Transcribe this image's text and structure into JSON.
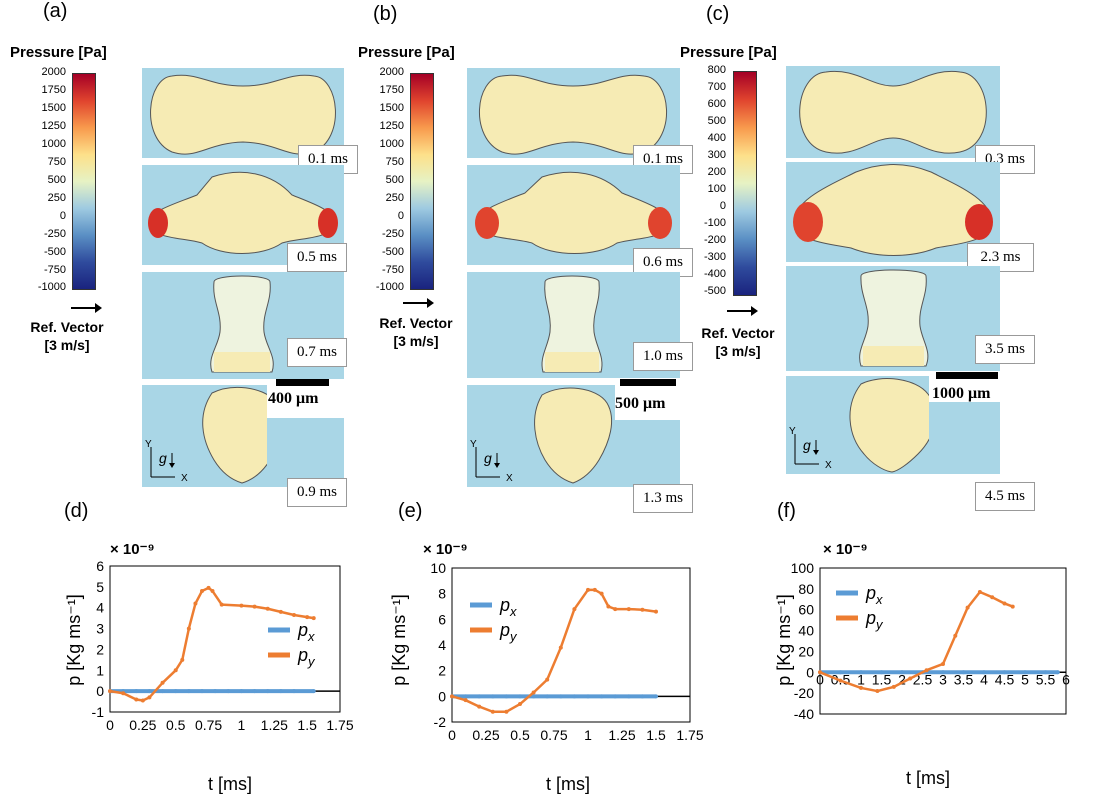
{
  "panels": [
    {
      "label": "(a)",
      "colorbar_title": "Pressure [Pa]",
      "ticks": [
        "2000",
        "1750",
        "1500",
        "1250",
        "1000",
        "750",
        "500",
        "250",
        "0",
        "-250",
        "-500",
        "-750",
        "-1000"
      ],
      "ref_vector": "Ref. Vector",
      "ref_speed": "[3 m/s]",
      "times": [
        "0.1 ms",
        "0.5 ms",
        "0.7 ms",
        "0.9 ms"
      ],
      "scale": "400 μm"
    },
    {
      "label": "(b)",
      "colorbar_title": "Pressure [Pa]",
      "ticks": [
        "2000",
        "1750",
        "1500",
        "1250",
        "1000",
        "750",
        "500",
        "250",
        "0",
        "-250",
        "-500",
        "-750",
        "-1000"
      ],
      "ref_vector": "Ref. Vector",
      "ref_speed": "[3 m/s]",
      "times": [
        "0.1 ms",
        "0.6 ms",
        "1.0 ms",
        "1.3 ms"
      ],
      "scale": "500 μm"
    },
    {
      "label": "(c)",
      "colorbar_title": "Pressure [Pa]",
      "ticks": [
        "800",
        "700",
        "600",
        "500",
        "400",
        "300",
        "200",
        "100",
        "0",
        "-100",
        "-200",
        "-300",
        "-400",
        "-500"
      ],
      "ref_vector": "Ref. Vector",
      "ref_speed": "[3 m/s]",
      "times": [
        "0.3 ms",
        "2.3 ms",
        "3.5 ms",
        "4.5 ms"
      ],
      "scale": "1000 μm"
    }
  ],
  "axes_icon": {
    "y": "Y",
    "x": "X",
    "g": "g"
  },
  "colors": {
    "px": "#5b9bd5",
    "py": "#ed7d31",
    "fluid": "#a9d6e6"
  },
  "chart_data": [
    {
      "label": "(d)",
      "type": "line",
      "multiplier": "× 10⁻⁹",
      "ylabel": "p [Kg ms⁻¹]",
      "xlabel": "t [ms]",
      "xlim": [
        0,
        1.75
      ],
      "ylim": [
        -1,
        6
      ],
      "xticks": [
        "0",
        "0.25",
        "0.5",
        "0.75",
        "1",
        "1.25",
        "1.5",
        "1.75"
      ],
      "xtickvals": [
        0,
        0.25,
        0.5,
        0.75,
        1,
        1.25,
        1.5,
        1.75
      ],
      "yticks": [
        "-1",
        "0",
        "1",
        "2",
        "3",
        "4",
        "5",
        "6"
      ],
      "ytickvals": [
        -1,
        0,
        1,
        2,
        3,
        4,
        5,
        6
      ],
      "legend": [
        "p_x",
        "p_y"
      ],
      "series": [
        {
          "name": "p_x",
          "x": [
            0,
            0.1,
            0.2,
            0.3,
            0.4,
            0.5,
            0.6,
            0.7,
            0.8,
            0.9,
            1.0,
            1.1,
            1.2,
            1.3,
            1.4,
            1.55
          ],
          "y": [
            0,
            0,
            0,
            0,
            0,
            0,
            0,
            0,
            0,
            0,
            0,
            0,
            0,
            0,
            0,
            0
          ]
        },
        {
          "name": "p_y",
          "x": [
            0,
            0.1,
            0.2,
            0.25,
            0.3,
            0.4,
            0.5,
            0.55,
            0.6,
            0.65,
            0.7,
            0.75,
            0.78,
            0.85,
            1.0,
            1.1,
            1.2,
            1.3,
            1.4,
            1.5,
            1.55
          ],
          "y": [
            0,
            -0.1,
            -0.4,
            -0.45,
            -0.3,
            0.4,
            1.0,
            1.5,
            3.0,
            4.2,
            4.8,
            4.95,
            4.8,
            4.15,
            4.1,
            4.05,
            3.95,
            3.8,
            3.65,
            3.55,
            3.5
          ]
        }
      ]
    },
    {
      "label": "(e)",
      "type": "line",
      "multiplier": "× 10⁻⁹",
      "ylabel": "p [Kg ms⁻¹]",
      "xlabel": "t [ms]",
      "xlim": [
        0,
        1.75
      ],
      "ylim": [
        -2,
        10
      ],
      "xticks": [
        "0",
        "0.25",
        "0.5",
        "0.75",
        "1",
        "1.25",
        "1.5",
        "1.75"
      ],
      "xtickvals": [
        0,
        0.25,
        0.5,
        0.75,
        1,
        1.25,
        1.5,
        1.75
      ],
      "yticks": [
        "-2",
        "0",
        "2",
        "4",
        "6",
        "8",
        "10"
      ],
      "ytickvals": [
        -2,
        0,
        2,
        4,
        6,
        8,
        10
      ],
      "legend": [
        "p_x",
        "p_y"
      ],
      "series": [
        {
          "name": "p_x",
          "x": [
            0,
            0.1,
            0.2,
            0.3,
            0.4,
            0.5,
            0.6,
            0.7,
            0.8,
            0.9,
            1.0,
            1.1,
            1.2,
            1.3,
            1.4,
            1.5
          ],
          "y": [
            0,
            0,
            0,
            0,
            0,
            0,
            0,
            0,
            0,
            0,
            0,
            0,
            0,
            0,
            0,
            0
          ]
        },
        {
          "name": "p_y",
          "x": [
            0,
            0.1,
            0.2,
            0.3,
            0.4,
            0.5,
            0.6,
            0.7,
            0.8,
            0.9,
            1.0,
            1.05,
            1.1,
            1.15,
            1.2,
            1.3,
            1.4,
            1.5
          ],
          "y": [
            0,
            -0.3,
            -0.8,
            -1.2,
            -1.2,
            -0.6,
            0.3,
            1.3,
            3.8,
            6.8,
            8.3,
            8.3,
            8.0,
            7.0,
            6.8,
            6.8,
            6.75,
            6.6
          ]
        }
      ]
    },
    {
      "label": "(f)",
      "type": "line",
      "multiplier": "× 10⁻⁹",
      "ylabel": "p [Kg ms⁻¹]",
      "xlabel": "t [ms]",
      "xlim": [
        0,
        6
      ],
      "ylim": [
        -40,
        100
      ],
      "xticks": [
        "0",
        "0.5",
        "1",
        "1.5",
        "2",
        "2.5",
        "3",
        "3.5",
        "4",
        "4.5",
        "5",
        "5.5",
        "6"
      ],
      "xtickvals": [
        0,
        0.5,
        1,
        1.5,
        2,
        2.5,
        3,
        3.5,
        4,
        4.5,
        5,
        5.5,
        6
      ],
      "yticks": [
        "-40",
        "-20",
        "0",
        "20",
        "40",
        "60",
        "80",
        "100"
      ],
      "ytickvals": [
        -40,
        -20,
        0,
        20,
        40,
        60,
        80,
        100
      ],
      "legend": [
        "p_x",
        "p_y"
      ],
      "series": [
        {
          "name": "p_x",
          "x": [
            0,
            0.5,
            1,
            1.5,
            2,
            2.5,
            3,
            3.5,
            4,
            4.5,
            5,
            5.5,
            5.8
          ],
          "y": [
            0,
            0,
            0,
            0,
            0,
            0,
            0,
            0,
            0,
            0,
            0,
            0,
            0
          ]
        },
        {
          "name": "p_y",
          "x": [
            0,
            0.5,
            1.0,
            1.4,
            1.8,
            2.2,
            2.6,
            3.0,
            3.3,
            3.6,
            3.9,
            4.2,
            4.5,
            4.7
          ],
          "y": [
            0,
            -8,
            -15,
            -18,
            -14,
            -6,
            2,
            8,
            35,
            62,
            77,
            72,
            66,
            63
          ]
        }
      ]
    }
  ]
}
